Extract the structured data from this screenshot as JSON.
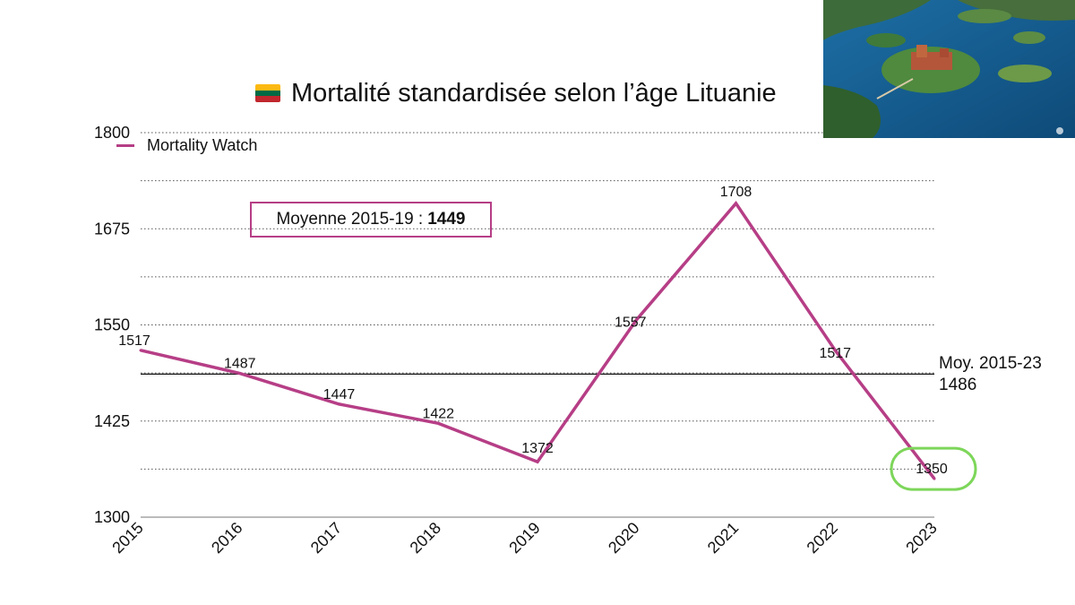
{
  "header": {
    "title": "Mortalité standardisée selon l’âge Lituanie",
    "flag_colors": [
      "#FDB913",
      "#006A44",
      "#C1272D"
    ],
    "photo_icon": "aerial-photo-trakai-castle"
  },
  "annotation": {
    "avg_label": "Moyenne 2015-19 :",
    "avg_value": "1449"
  },
  "reference": {
    "label": "Moy. 2015-23",
    "value": "1486",
    "y": 1486
  },
  "chart_data": {
    "type": "line",
    "x": [
      "2015",
      "2016",
      "2017",
      "2018",
      "2019",
      "2020",
      "2021",
      "2022",
      "2023"
    ],
    "series": [
      {
        "name": "Mortality Watch",
        "values": [
          1517,
          1487,
          1447,
          1422,
          1372,
          1557,
          1708,
          1517,
          1350
        ],
        "labels": [
          "1517",
          "1487",
          "1447",
          "1422",
          "1372",
          "1557",
          "1708",
          "1517",
          "1350"
        ],
        "color": "#b63e86"
      }
    ],
    "ylim": [
      1300,
      1800
    ],
    "yticks": [
      1300,
      1425,
      1550,
      1675,
      1800
    ],
    "xlabel": "",
    "ylabel": "",
    "grid": "dotted",
    "legend": "top-left",
    "highlight_color": "#7dd65a",
    "highlighted_point": "2023"
  }
}
